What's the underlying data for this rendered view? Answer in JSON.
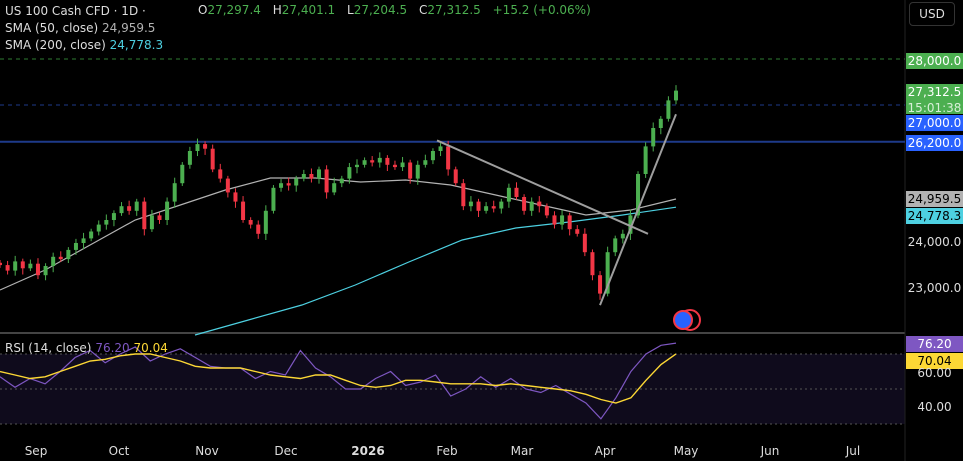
{
  "header": {
    "symbol": "US 100 Cash CFD · 1D ·",
    "currency": "USD",
    "ohlc": {
      "o_label": "O",
      "o": "27,297.4",
      "h_label": "H",
      "h": "27,401.1",
      "l_label": "L",
      "l": "27,204.5",
      "c_label": "C",
      "c": "27,312.5",
      "change": "+15.2 (+0.06%)"
    },
    "sma50": {
      "label": "SMA (50, close)",
      "value": "24,959.5"
    },
    "sma200": {
      "label": "SMA (200, close)",
      "value": "24,778.3"
    },
    "rsi": {
      "label": "RSI (14, close)",
      "value": "76.20",
      "ma_value": "70.04"
    }
  },
  "price_axis": {
    "ticks": [
      "28,000.0",
      "24,000.0",
      "23,000.0"
    ],
    "tags": {
      "line_28000": "28,000.0",
      "last": "27,312.5",
      "countdown": "15:01:38",
      "line_27000": "27,000.0",
      "line_26200": "26,200.0",
      "sma50": "24,959.5",
      "sma200": "24,778.3"
    }
  },
  "rsi_axis": {
    "ticks": [
      "60.00",
      "40.00"
    ],
    "tags": {
      "rsi": "76.20",
      "ma": "70.04"
    }
  },
  "time_axis": [
    "Sep",
    "Oct",
    "Nov",
    "Dec",
    "2026",
    "Feb",
    "Mar",
    "Apr",
    "May",
    "Jun",
    "Jul"
  ],
  "colors": {
    "up": "#26a69a",
    "down": "#ef5350",
    "candle_up": "#4caf50",
    "candle_down": "#f23645",
    "sma50": "#b2b2b2",
    "sma200": "#4dd0e1",
    "rsi": "#7e57c2",
    "rsi_ma": "#fdd835",
    "hline": "#2962ff"
  },
  "chart_data": [
    {
      "type": "candlestick",
      "title": "US 100 Cash CFD · 1D",
      "ylim": [
        22000,
        28500
      ],
      "closes": [
        23520,
        23400,
        23600,
        23450,
        23550,
        23300,
        23500,
        23700,
        23650,
        23850,
        24000,
        24100,
        24250,
        24400,
        24500,
        24650,
        24800,
        24700,
        24900,
        24300,
        24600,
        24500,
        24900,
        25300,
        25700,
        26000,
        26150,
        26050,
        25600,
        25400,
        25100,
        24900,
        24500,
        24400,
        24200,
        24700,
        25200,
        25300,
        25250,
        25400,
        25500,
        25400,
        25600,
        25100,
        25300,
        25400,
        25650,
        25700,
        25800,
        25750,
        25850,
        25700,
        25650,
        25750,
        25400,
        25700,
        25800,
        26000,
        26100,
        25600,
        25300,
        24800,
        24900,
        24700,
        24800,
        24750,
        24900,
        25200,
        25000,
        24700,
        24900,
        24800,
        24600,
        24400,
        24600,
        24300,
        24200,
        23800,
        23300,
        22900,
        23800,
        24100,
        24200,
        24600,
        25500,
        26100,
        26500,
        26700,
        27100,
        27312.5
      ],
      "sma50": [
        22978,
        23413,
        23957,
        24500,
        24826,
        25152,
        25413,
        25413,
        25326,
        25370,
        25261,
        25043,
        24826,
        24609,
        24717,
        24957
      ],
      "sma200": [
        22000,
        22326,
        22652,
        23087,
        23587,
        24065,
        24326,
        24457,
        24609,
        24778
      ],
      "horizontal_lines": [
        28000,
        27000,
        26200
      ],
      "trendlines": [
        [
          26230,
          24200
        ],
        [
          22650,
          26800
        ]
      ]
    },
    {
      "type": "line",
      "title": "RSI (14, close)",
      "ylim": [
        25,
        82
      ],
      "levels": [
        70,
        50,
        30
      ],
      "series": [
        {
          "name": "RSI",
          "values": [
            57,
            51,
            56,
            53,
            60,
            68,
            72,
            65,
            70,
            74,
            66,
            70,
            73,
            68,
            63,
            62,
            62,
            56,
            60,
            58,
            72,
            62,
            57,
            50,
            50,
            56,
            60,
            52,
            54,
            58,
            46,
            50,
            57,
            51,
            56,
            50,
            48,
            52,
            47,
            42,
            33,
            45,
            60,
            70,
            75,
            76.2
          ]
        },
        {
          "name": "RSI MA",
          "values": [
            60,
            58,
            56,
            57,
            60,
            63,
            66,
            67,
            69,
            70,
            70,
            68,
            66,
            63,
            62,
            62,
            62,
            60,
            58,
            57,
            56,
            58,
            58,
            55,
            52,
            51,
            52,
            55,
            55,
            54,
            53,
            53,
            53,
            52,
            53,
            52,
            51,
            50,
            49,
            47,
            44,
            42,
            45,
            55,
            64,
            70.04
          ]
        }
      ]
    }
  ]
}
